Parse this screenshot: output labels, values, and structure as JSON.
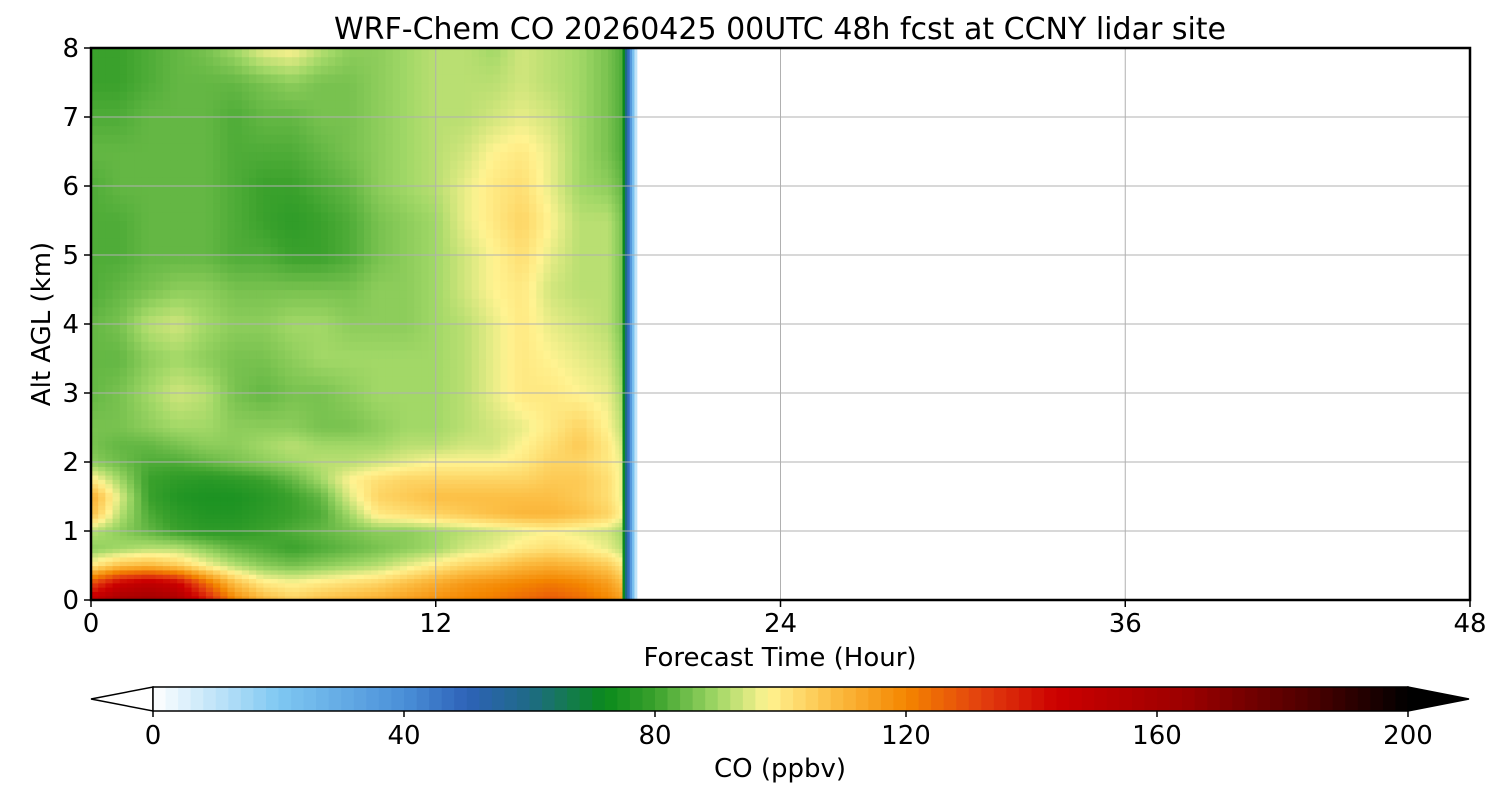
{
  "chart_data": {
    "type": "heatmap",
    "title": "WRF-Chem CO  20260425 00UTC 48h fcst at CCNY lidar site",
    "xlabel": "Forecast Time (Hour)",
    "ylabel": "Alt AGL (km)",
    "xlim": [
      0,
      48
    ],
    "ylim": [
      0,
      8
    ],
    "x_ticks": [
      "0",
      "12",
      "24",
      "36",
      "48"
    ],
    "y_ticks": [
      "0",
      "1",
      "2",
      "3",
      "4",
      "5",
      "6",
      "7",
      "8"
    ],
    "grid": true,
    "colorbar": {
      "label": "CO  (ppbv)",
      "range": [
        0,
        200
      ],
      "extend": "both",
      "ticks": [
        "0",
        "40",
        "80",
        "120",
        "160",
        "200"
      ],
      "stops": [
        {
          "value": 0,
          "color": "#ffffff"
        },
        {
          "value": 20,
          "color": "#7fc8f2"
        },
        {
          "value": 40,
          "color": "#4a8fd8"
        },
        {
          "value": 50,
          "color": "#2e62b8"
        },
        {
          "value": 60,
          "color": "#1e6a86"
        },
        {
          "value": 72,
          "color": "#0a8a1c"
        },
        {
          "value": 80,
          "color": "#3aa12c"
        },
        {
          "value": 90,
          "color": "#a2d867"
        },
        {
          "value": 98,
          "color": "#fff391"
        },
        {
          "value": 108,
          "color": "#fcbf45"
        },
        {
          "value": 120,
          "color": "#f48600"
        },
        {
          "value": 132,
          "color": "#e33f0e"
        },
        {
          "value": 144,
          "color": "#cc0000"
        },
        {
          "value": 165,
          "color": "#9a0000"
        },
        {
          "value": 185,
          "color": "#4a0000"
        },
        {
          "value": 200,
          "color": "#000000"
        }
      ]
    },
    "data_extent_hours": [
      0,
      19
    ],
    "x_hours": [
      0,
      1,
      2,
      3,
      4,
      5,
      6,
      7,
      8,
      9,
      10,
      11,
      12,
      13,
      14,
      15,
      16,
      17,
      18,
      18.5
    ],
    "y_km": [
      0,
      0.25,
      0.5,
      0.75,
      1.0,
      1.25,
      1.5,
      1.75,
      2.0,
      2.25,
      2.5,
      3.0,
      3.5,
      4.0,
      4.5,
      5.0,
      5.5,
      6.0,
      6.5,
      7.0,
      7.5,
      8.0
    ],
    "values_ppbv": [
      [
        150,
        160,
        162,
        158,
        140,
        120,
        110,
        105,
        108,
        110,
        112,
        115,
        118,
        120,
        122,
        125,
        128,
        125,
        120,
        115
      ],
      [
        130,
        145,
        150,
        145,
        125,
        108,
        100,
        98,
        100,
        102,
        104,
        108,
        112,
        116,
        118,
        120,
        122,
        120,
        115,
        108
      ],
      [
        100,
        108,
        110,
        106,
        98,
        92,
        88,
        86,
        88,
        90,
        92,
        96,
        100,
        104,
        106,
        110,
        112,
        110,
        106,
        100
      ],
      [
        88,
        90,
        92,
        92,
        88,
        84,
        82,
        80,
        82,
        84,
        86,
        88,
        90,
        94,
        96,
        100,
        102,
        100,
        96,
        92
      ],
      [
        92,
        88,
        84,
        80,
        78,
        78,
        80,
        82,
        84,
        86,
        88,
        88,
        90,
        92,
        94,
        96,
        98,
        96,
        94,
        90
      ],
      [
        108,
        92,
        82,
        78,
        76,
        76,
        78,
        80,
        82,
        90,
        100,
        102,
        104,
        106,
        108,
        110,
        110,
        108,
        104,
        98
      ],
      [
        112,
        95,
        80,
        76,
        75,
        75,
        77,
        80,
        84,
        95,
        104,
        106,
        108,
        108,
        108,
        108,
        108,
        106,
        102,
        96
      ],
      [
        100,
        90,
        80,
        78,
        77,
        78,
        80,
        84,
        90,
        98,
        102,
        104,
        104,
        104,
        104,
        104,
        106,
        106,
        102,
        96
      ],
      [
        88,
        85,
        82,
        82,
        84,
        86,
        88,
        90,
        92,
        92,
        94,
        96,
        98,
        98,
        98,
        100,
        104,
        104,
        100,
        96
      ],
      [
        86,
        84,
        84,
        86,
        88,
        88,
        90,
        92,
        90,
        90,
        90,
        92,
        92,
        94,
        94,
        98,
        102,
        106,
        100,
        94
      ],
      [
        86,
        86,
        88,
        90,
        90,
        88,
        88,
        88,
        86,
        86,
        88,
        90,
        90,
        92,
        94,
        96,
        100,
        104,
        98,
        92
      ],
      [
        84,
        86,
        90,
        94,
        92,
        86,
        84,
        86,
        86,
        88,
        90,
        90,
        90,
        92,
        96,
        100,
        100,
        98,
        96,
        90
      ],
      [
        84,
        84,
        88,
        90,
        88,
        86,
        86,
        88,
        90,
        90,
        90,
        90,
        90,
        92,
        96,
        100,
        98,
        96,
        94,
        88
      ],
      [
        84,
        86,
        92,
        94,
        90,
        88,
        88,
        90,
        90,
        88,
        88,
        88,
        90,
        92,
        96,
        100,
        96,
        94,
        92,
        86
      ],
      [
        82,
        84,
        86,
        88,
        88,
        86,
        86,
        86,
        86,
        86,
        88,
        88,
        90,
        94,
        98,
        100,
        94,
        92,
        92,
        86
      ],
      [
        82,
        82,
        84,
        84,
        84,
        82,
        82,
        80,
        80,
        82,
        86,
        88,
        90,
        94,
        98,
        102,
        96,
        92,
        92,
        86
      ],
      [
        82,
        82,
        84,
        84,
        84,
        82,
        80,
        78,
        80,
        82,
        86,
        88,
        90,
        96,
        100,
        104,
        98,
        92,
        92,
        86
      ],
      [
        82,
        84,
        84,
        84,
        84,
        82,
        80,
        80,
        82,
        84,
        88,
        90,
        92,
        96,
        100,
        102,
        96,
        90,
        88,
        84
      ],
      [
        84,
        84,
        84,
        84,
        84,
        82,
        82,
        82,
        84,
        86,
        88,
        90,
        92,
        94,
        98,
        100,
        96,
        90,
        86,
        82
      ],
      [
        82,
        82,
        84,
        84,
        84,
        82,
        84,
        84,
        86,
        86,
        88,
        90,
        92,
        92,
        94,
        96,
        94,
        90,
        86,
        82
      ],
      [
        80,
        80,
        82,
        84,
        84,
        84,
        86,
        88,
        86,
        86,
        88,
        90,
        92,
        92,
        92,
        94,
        92,
        90,
        86,
        82
      ],
      [
        80,
        80,
        82,
        84,
        86,
        90,
        96,
        98,
        92,
        88,
        88,
        90,
        92,
        92,
        90,
        94,
        92,
        90,
        86,
        82
      ]
    ]
  }
}
